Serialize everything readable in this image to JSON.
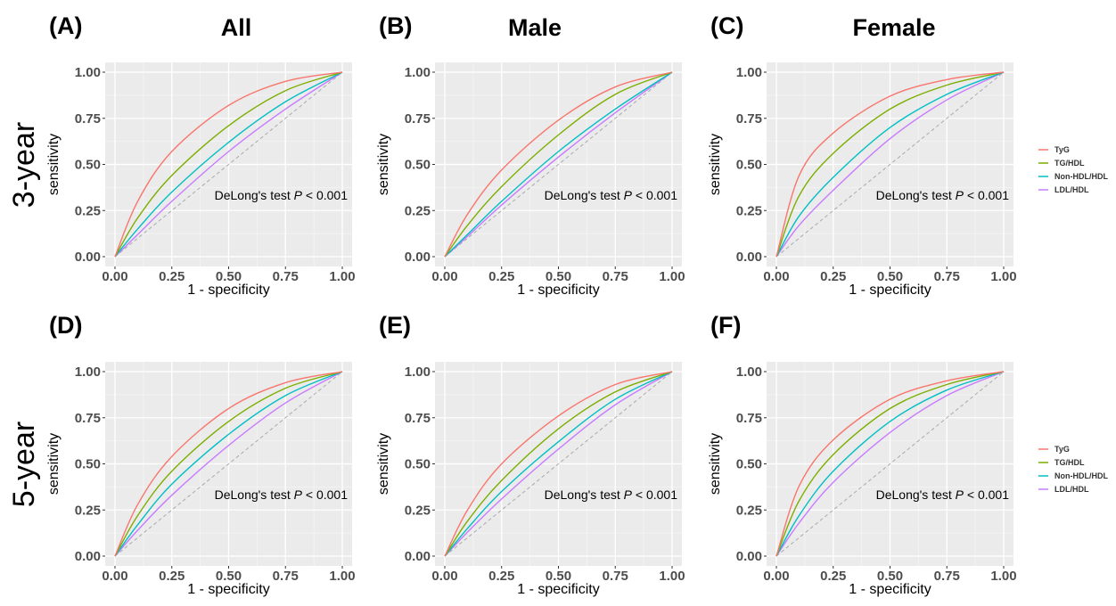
{
  "column_titles": [
    "All",
    "Male",
    "Female"
  ],
  "row_titles": [
    "3-year",
    "5-year"
  ],
  "panel_letters": [
    "(A)",
    "(B)",
    "(C)",
    "(D)",
    "(E)",
    "(F)"
  ],
  "annotation": {
    "prefix": "DeLong's test ",
    "p": "P",
    "suffix": " < 0.001"
  },
  "reference_line_color": "#aaaaaa",
  "panel_background": "#ebebeb",
  "legend": {
    "entries": [
      "TyG",
      "TG/HDL",
      "Non-HDL/HDL",
      "LDL/HDL"
    ],
    "colors": [
      "#F8766D",
      "#7CAE00",
      "#00BFC4",
      "#C77CFF"
    ]
  },
  "chart_data": [
    {
      "panel": "(A)",
      "type": "line",
      "xlabel": "1 - specificity",
      "ylabel": "sensitivity",
      "xlim": [
        0,
        1
      ],
      "ylim": [
        0,
        1
      ],
      "ticks": [
        "0.00",
        "0.25",
        "0.50",
        "0.75",
        "1.00"
      ],
      "grid": true,
      "legend": "none",
      "x": [
        0,
        0.1,
        0.25,
        0.5,
        0.75,
        1
      ],
      "series": [
        {
          "name": "TyG",
          "values": [
            0,
            0.3,
            0.57,
            0.82,
            0.95,
            1
          ]
        },
        {
          "name": "TG/HDL",
          "values": [
            0,
            0.21,
            0.44,
            0.71,
            0.9,
            1
          ]
        },
        {
          "name": "Non-HDL/HDL",
          "values": [
            0,
            0.15,
            0.35,
            0.62,
            0.84,
            1
          ]
        },
        {
          "name": "LDL/HDL",
          "values": [
            0,
            0.12,
            0.3,
            0.57,
            0.8,
            1
          ]
        }
      ]
    },
    {
      "panel": "(B)",
      "type": "line",
      "xlabel": "1 - specificity",
      "ylabel": "sensitivity",
      "xlim": [
        0,
        1
      ],
      "ylim": [
        0,
        1
      ],
      "ticks": [
        "0.00",
        "0.25",
        "0.50",
        "0.75",
        "1.00"
      ],
      "grid": true,
      "legend": "none",
      "x": [
        0,
        0.1,
        0.25,
        0.5,
        0.75,
        1
      ],
      "series": [
        {
          "name": "TyG",
          "values": [
            0,
            0.23,
            0.47,
            0.74,
            0.92,
            1
          ]
        },
        {
          "name": "TG/HDL",
          "values": [
            0,
            0.17,
            0.38,
            0.66,
            0.88,
            1
          ]
        },
        {
          "name": "Non-HDL/HDL",
          "values": [
            0,
            0.12,
            0.3,
            0.57,
            0.8,
            1
          ]
        },
        {
          "name": "LDL/HDL",
          "values": [
            0,
            0.11,
            0.28,
            0.54,
            0.78,
            1
          ]
        }
      ]
    },
    {
      "panel": "(C)",
      "type": "line",
      "xlabel": "1 - specificity",
      "ylabel": "sensitivity",
      "xlim": [
        0,
        1
      ],
      "ylim": [
        0,
        1
      ],
      "ticks": [
        "0.00",
        "0.25",
        "0.50",
        "0.75",
        "1.00"
      ],
      "grid": true,
      "legend": "right",
      "x": [
        0,
        0.1,
        0.25,
        0.5,
        0.75,
        1
      ],
      "series": [
        {
          "name": "TyG",
          "values": [
            0,
            0.44,
            0.67,
            0.87,
            0.96,
            1
          ]
        },
        {
          "name": "TG/HDL",
          "values": [
            0,
            0.33,
            0.56,
            0.8,
            0.93,
            1
          ]
        },
        {
          "name": "Non-HDL/HDL",
          "values": [
            0,
            0.22,
            0.43,
            0.7,
            0.88,
            1
          ]
        },
        {
          "name": "LDL/HDL",
          "values": [
            0,
            0.17,
            0.36,
            0.64,
            0.85,
            1
          ]
        }
      ]
    },
    {
      "panel": "(D)",
      "type": "line",
      "xlabel": "1 - specificity",
      "ylabel": "sensitivity",
      "xlim": [
        0,
        1
      ],
      "ylim": [
        0,
        1
      ],
      "ticks": [
        "0.00",
        "0.25",
        "0.50",
        "0.75",
        "1.00"
      ],
      "grid": true,
      "legend": "none",
      "x": [
        0,
        0.1,
        0.25,
        0.5,
        0.75,
        1
      ],
      "series": [
        {
          "name": "TyG",
          "values": [
            0,
            0.28,
            0.54,
            0.8,
            0.94,
            1
          ]
        },
        {
          "name": "TG/HDL",
          "values": [
            0,
            0.22,
            0.46,
            0.73,
            0.91,
            1
          ]
        },
        {
          "name": "Non-HDL/HDL",
          "values": [
            0,
            0.17,
            0.39,
            0.66,
            0.87,
            1
          ]
        },
        {
          "name": "LDL/HDL",
          "values": [
            0,
            0.14,
            0.33,
            0.6,
            0.83,
            1
          ]
        }
      ]
    },
    {
      "panel": "(E)",
      "type": "line",
      "xlabel": "1 - specificity",
      "ylabel": "sensitivity",
      "xlim": [
        0,
        1
      ],
      "ylim": [
        0,
        1
      ],
      "ticks": [
        "0.00",
        "0.25",
        "0.50",
        "0.75",
        "1.00"
      ],
      "grid": true,
      "legend": "none",
      "x": [
        0,
        0.1,
        0.25,
        0.5,
        0.75,
        1
      ],
      "series": [
        {
          "name": "TyG",
          "values": [
            0,
            0.25,
            0.5,
            0.76,
            0.93,
            1
          ]
        },
        {
          "name": "TG/HDL",
          "values": [
            0,
            0.19,
            0.41,
            0.69,
            0.89,
            1
          ]
        },
        {
          "name": "Non-HDL/HDL",
          "values": [
            0,
            0.15,
            0.35,
            0.62,
            0.85,
            1
          ]
        },
        {
          "name": "LDL/HDL",
          "values": [
            0,
            0.13,
            0.31,
            0.58,
            0.82,
            1
          ]
        }
      ]
    },
    {
      "panel": "(F)",
      "type": "line",
      "xlabel": "1 - specificity",
      "ylabel": "sensitivity",
      "xlim": [
        0,
        1
      ],
      "ylim": [
        0,
        1
      ],
      "ticks": [
        "0.00",
        "0.25",
        "0.50",
        "0.75",
        "1.00"
      ],
      "grid": true,
      "legend": "right",
      "x": [
        0,
        0.1,
        0.25,
        0.5,
        0.75,
        1
      ],
      "series": [
        {
          "name": "TyG",
          "values": [
            0,
            0.38,
            0.63,
            0.85,
            0.95,
            1
          ]
        },
        {
          "name": "TG/HDL",
          "values": [
            0,
            0.3,
            0.55,
            0.8,
            0.93,
            1
          ]
        },
        {
          "name": "Non-HDL/HDL",
          "values": [
            0,
            0.22,
            0.46,
            0.73,
            0.9,
            1
          ]
        },
        {
          "name": "LDL/HDL",
          "values": [
            0,
            0.18,
            0.4,
            0.67,
            0.87,
            1
          ]
        }
      ]
    }
  ]
}
